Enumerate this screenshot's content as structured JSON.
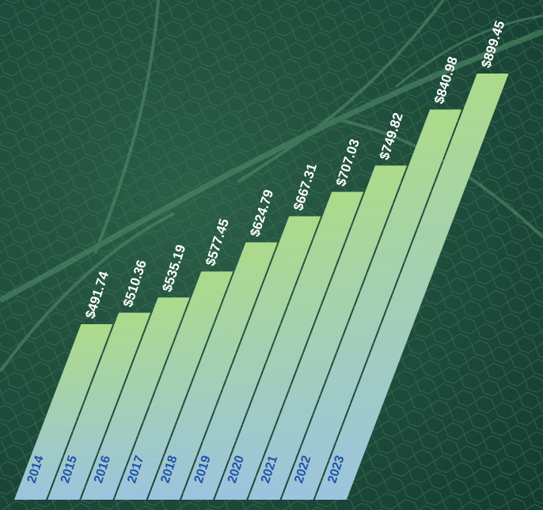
{
  "chart_data": {
    "type": "bar",
    "categories": [
      "2014",
      "2015",
      "2016",
      "2017",
      "2018",
      "2019",
      "2020",
      "2021",
      "2022",
      "2023"
    ],
    "values": [
      491.74,
      510.36,
      535.19,
      577.45,
      624.79,
      667.31,
      707.03,
      749.82,
      840.98,
      899.45
    ],
    "value_labels": [
      "$491.74",
      "$510.36",
      "$535.19",
      "$577.45",
      "$624.79",
      "$667.31",
      "$707.03",
      "$749.82",
      "$840.98",
      "$899.45"
    ],
    "color": "#a9d98c"
  }
}
